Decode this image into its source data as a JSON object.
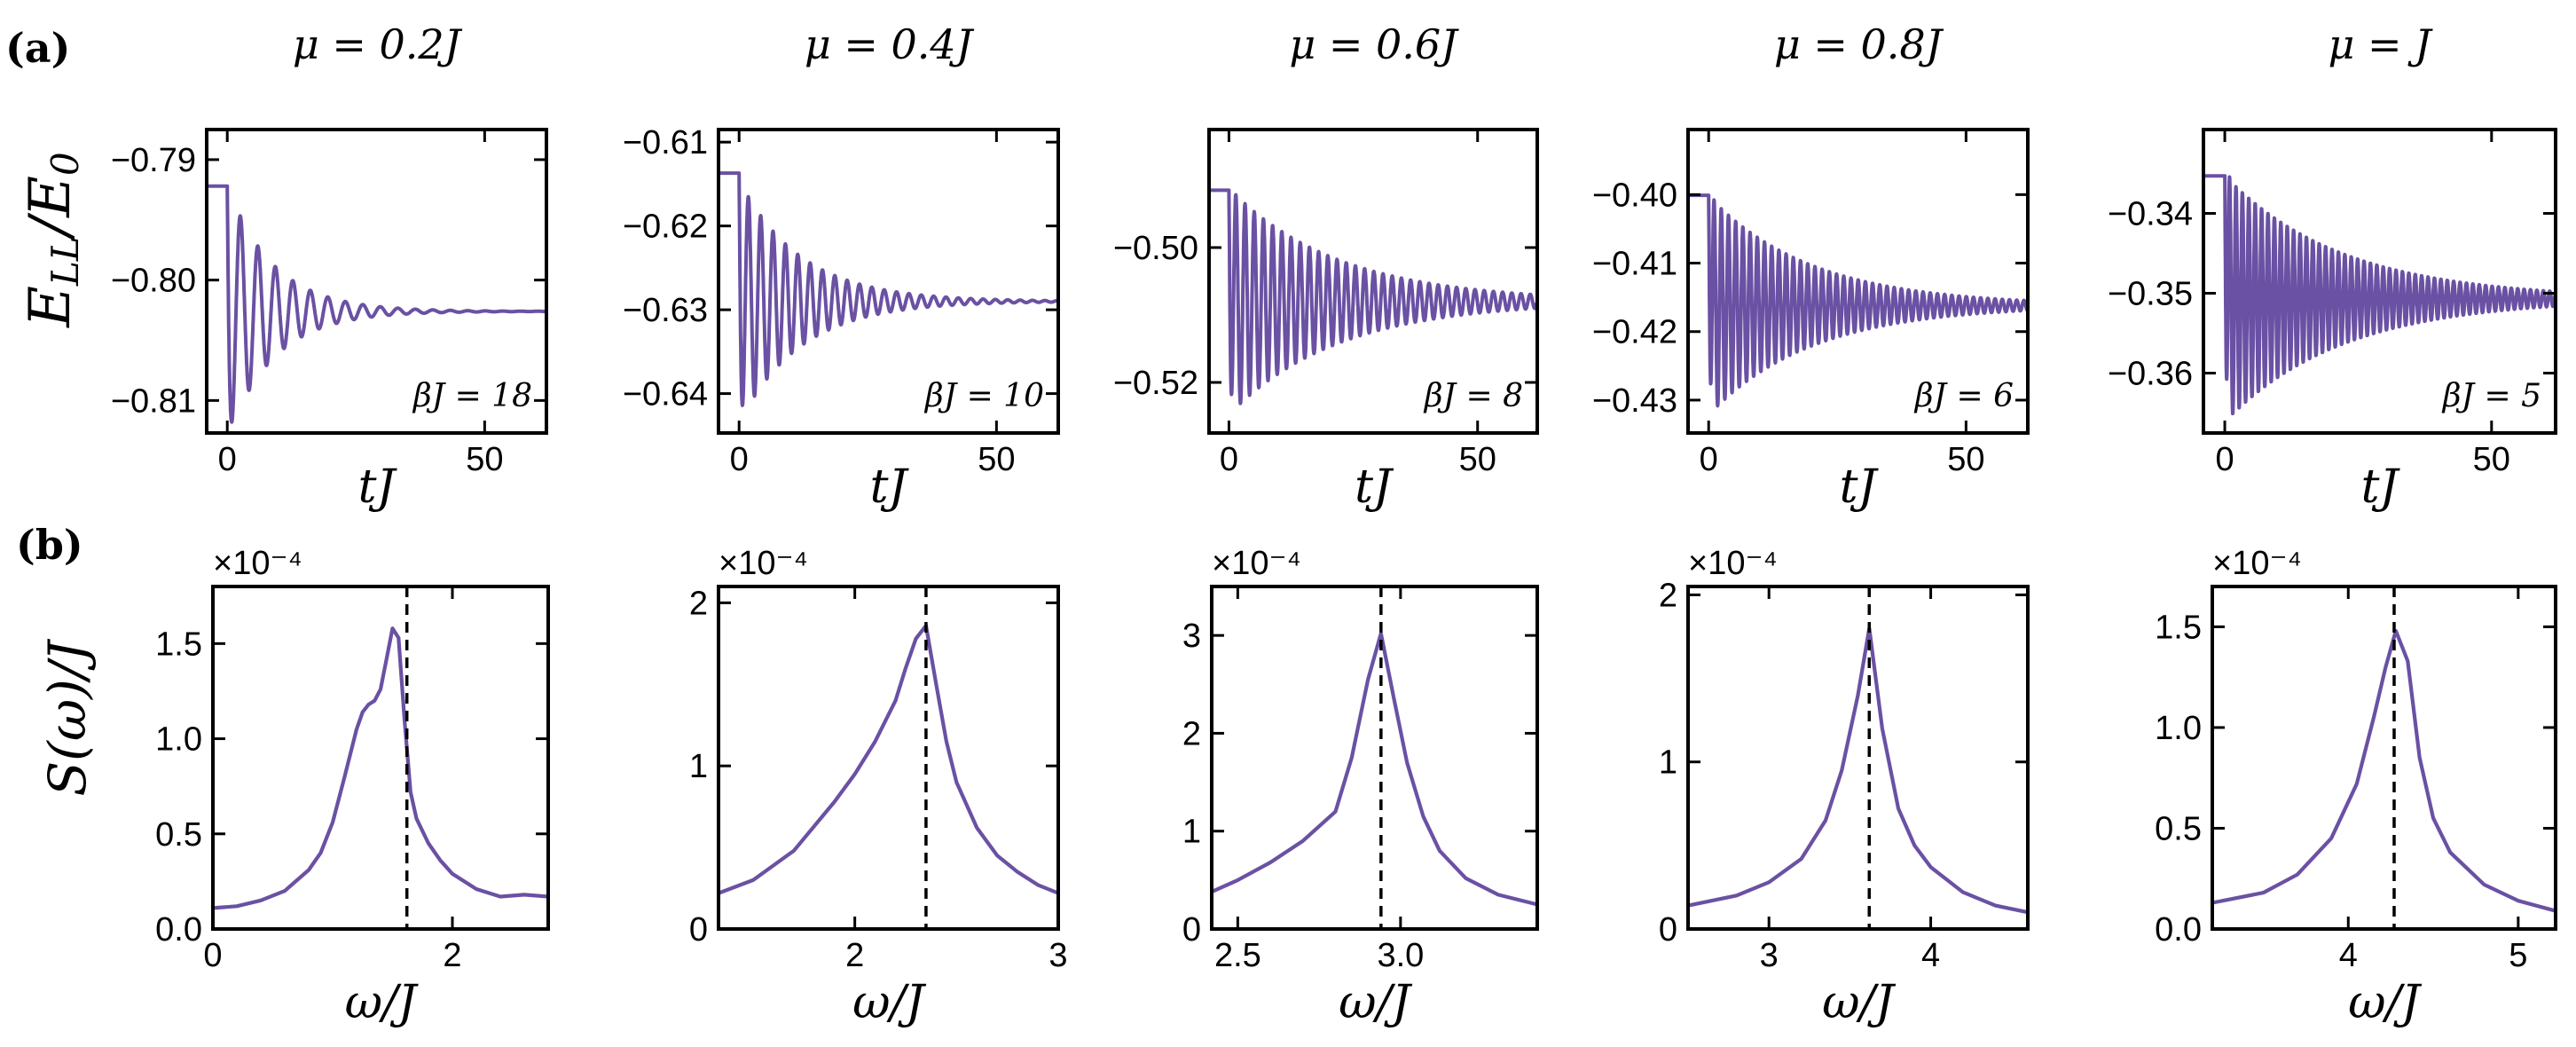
{
  "figure": {
    "row_labels": [
      "(a)",
      "(b)"
    ],
    "row_a_ylabel": "E_LL / E_0",
    "row_b_ylabel": "S(ω)/J",
    "row_a_xlabel": "tJ",
    "row_b_xlabel": "ω/J",
    "scale_note": "×10⁻⁴",
    "line_color": "#6a51a3"
  },
  "chart_data": [
    {
      "type": "line",
      "panel": "a1",
      "title": "μ = 0.2J",
      "annotation": "βJ = 18",
      "xlabel": "tJ",
      "ylabel": "E_LL/E_0",
      "xlim": [
        -4,
        62
      ],
      "ylim": [
        -0.8127,
        -0.7875
      ],
      "xticks": [
        0,
        50
      ],
      "xtick_labels": [
        "0",
        "50"
      ],
      "yticks": [
        -0.79,
        -0.8,
        -0.81
      ],
      "ytick_labels": [
        "−0.79",
        "−0.80",
        "−0.81"
      ],
      "signal": {
        "t0": 0,
        "initial": -0.7922,
        "final": -0.8026,
        "amplitude": 0.0105,
        "period": 3.4,
        "decay_time": 9
      }
    },
    {
      "type": "line",
      "panel": "a2",
      "title": "μ = 0.4J",
      "annotation": "βJ = 10",
      "xlabel": "tJ",
      "ylabel": "E_LL/E_0",
      "xlim": [
        -4,
        62
      ],
      "ylim": [
        -0.6447,
        -0.6085
      ],
      "xticks": [
        0,
        50
      ],
      "xtick_labels": [
        "0",
        "50"
      ],
      "yticks": [
        -0.61,
        -0.62,
        -0.63,
        -0.64
      ],
      "ytick_labels": [
        "−0.61",
        "−0.62",
        "−0.63",
        "−0.64"
      ],
      "signal": {
        "t0": 0,
        "initial": -0.6137,
        "final": -0.629,
        "amplitude": 0.0145,
        "period": 2.4,
        "decay_time": 12
      }
    },
    {
      "type": "line",
      "panel": "a3",
      "title": "μ = 0.6J",
      "annotation": "βJ = 8",
      "xlabel": "tJ",
      "ylabel": "E_LL/E_0",
      "xlim": [
        -4,
        62
      ],
      "ylim": [
        -0.5275,
        -0.4825
      ],
      "xticks": [
        0,
        50
      ],
      "xtick_labels": [
        "0",
        "50"
      ],
      "yticks": [
        -0.5,
        -0.52
      ],
      "ytick_labels": [
        "−0.50",
        "−0.52"
      ],
      "signal": {
        "t0": 0,
        "initial": -0.4915,
        "final": -0.508,
        "amplitude": 0.0168,
        "period": 1.85,
        "decay_time": 22
      }
    },
    {
      "type": "line",
      "panel": "a4",
      "title": "μ = 0.8J",
      "annotation": "βJ = 6",
      "xlabel": "tJ",
      "ylabel": "E_LL/E_0",
      "xlim": [
        -4,
        62
      ],
      "ylim": [
        -0.4348,
        -0.3905
      ],
      "xticks": [
        0,
        50
      ],
      "xtick_labels": [
        "0",
        "50"
      ],
      "yticks": [
        -0.4,
        -0.41,
        -0.42,
        -0.43
      ],
      "ytick_labels": [
        "−0.40",
        "−0.41",
        "−0.42",
        "−0.43"
      ],
      "signal": {
        "t0": 0,
        "initial": -0.4001,
        "final": -0.4162,
        "amplitude": 0.016,
        "period": 1.4,
        "decay_time": 20
      }
    },
    {
      "type": "line",
      "panel": "a5",
      "title": "μ = J",
      "annotation": "βJ = 5",
      "xlabel": "tJ",
      "ylabel": "E_LL/E_0",
      "xlim": [
        -4,
        62
      ],
      "ylim": [
        -0.3675,
        -0.3295
      ],
      "xticks": [
        0,
        50
      ],
      "xtick_labels": [
        "0",
        "50"
      ],
      "yticks": [
        -0.34,
        -0.35,
        -0.36
      ],
      "ytick_labels": [
        "−0.34",
        "−0.35",
        "−0.36"
      ],
      "signal": {
        "t0": 0,
        "initial": -0.3353,
        "final": -0.3507,
        "amplitude": 0.0155,
        "period": 1.2,
        "decay_time": 22
      }
    },
    {
      "type": "line",
      "panel": "b1",
      "title": "",
      "xlabel": "ω/J",
      "ylabel": "S(ω)/J",
      "scale": "×10⁻⁴",
      "xlim": [
        0,
        2.8
      ],
      "ylim": [
        0,
        1.8
      ],
      "xticks": [
        0,
        2
      ],
      "xtick_labels": [
        "0",
        "2"
      ],
      "yticks": [
        0,
        0.5,
        1.0,
        1.5
      ],
      "ytick_labels": [
        "0.0",
        "0.5",
        "1.0",
        "1.5"
      ],
      "dashed_x": 1.62,
      "x": [
        0,
        0.2,
        0.4,
        0.6,
        0.8,
        0.9,
        1.0,
        1.1,
        1.2,
        1.25,
        1.3,
        1.35,
        1.4,
        1.45,
        1.5,
        1.55,
        1.6,
        1.65,
        1.7,
        1.8,
        1.9,
        2.0,
        2.2,
        2.4,
        2.6,
        2.8
      ],
      "y": [
        0.11,
        0.12,
        0.15,
        0.2,
        0.31,
        0.4,
        0.56,
        0.8,
        1.05,
        1.14,
        1.18,
        1.2,
        1.26,
        1.42,
        1.58,
        1.53,
        1.1,
        0.72,
        0.58,
        0.45,
        0.36,
        0.29,
        0.21,
        0.17,
        0.18,
        0.17
      ]
    },
    {
      "type": "line",
      "panel": "b2",
      "title": "",
      "xlabel": "ω/J",
      "ylabel": "S(ω)/J",
      "scale": "×10⁻⁴",
      "xlim": [
        1.33,
        3.0
      ],
      "ylim": [
        0,
        2.1
      ],
      "xticks": [
        2,
        3
      ],
      "xtick_labels": [
        "2",
        "3"
      ],
      "yticks": [
        0,
        1,
        2
      ],
      "ytick_labels": [
        "0",
        "1",
        "2"
      ],
      "dashed_x": 2.35,
      "x": [
        1.33,
        1.5,
        1.7,
        1.9,
        2.0,
        2.1,
        2.2,
        2.25,
        2.3,
        2.35,
        2.4,
        2.45,
        2.5,
        2.6,
        2.7,
        2.8,
        2.9,
        3.0
      ],
      "y": [
        0.22,
        0.3,
        0.48,
        0.78,
        0.95,
        1.15,
        1.4,
        1.6,
        1.78,
        1.86,
        1.5,
        1.15,
        0.9,
        0.62,
        0.45,
        0.35,
        0.27,
        0.22
      ],
      "markers": true
    },
    {
      "type": "line",
      "panel": "b3",
      "title": "",
      "xlabel": "ω/J",
      "ylabel": "S(ω)/J",
      "scale": "×10⁻⁴",
      "xlim": [
        2.42,
        3.42
      ],
      "ylim": [
        0,
        3.5
      ],
      "xticks": [
        2.5,
        3.0
      ],
      "xtick_labels": [
        "2.5",
        "3.0"
      ],
      "yticks": [
        0,
        1,
        2,
        3
      ],
      "ytick_labels": [
        "0",
        "1",
        "2",
        "3"
      ],
      "dashed_x": 2.94,
      "x": [
        2.42,
        2.5,
        2.6,
        2.7,
        2.8,
        2.85,
        2.9,
        2.94,
        2.98,
        3.02,
        3.07,
        3.12,
        3.2,
        3.3,
        3.42
      ],
      "y": [
        0.38,
        0.5,
        0.68,
        0.9,
        1.2,
        1.75,
        2.55,
        3.02,
        2.35,
        1.7,
        1.15,
        0.8,
        0.52,
        0.35,
        0.25
      ],
      "markers": true
    },
    {
      "type": "line",
      "panel": "b4",
      "title": "",
      "xlabel": "ω/J",
      "ylabel": "S(ω)/J",
      "scale": "×10⁻⁴",
      "xlim": [
        2.5,
        4.6
      ],
      "ylim": [
        0,
        2.05
      ],
      "xticks": [
        3,
        4
      ],
      "xtick_labels": [
        "3",
        "4"
      ],
      "yticks": [
        0,
        1,
        2
      ],
      "ytick_labels": [
        "0",
        "1",
        "2"
      ],
      "dashed_x": 3.62,
      "x": [
        2.5,
        2.8,
        3.0,
        3.2,
        3.35,
        3.45,
        3.55,
        3.62,
        3.7,
        3.8,
        3.9,
        4.0,
        4.2,
        4.4,
        4.6
      ],
      "y": [
        0.14,
        0.2,
        0.28,
        0.42,
        0.65,
        0.95,
        1.4,
        1.8,
        1.2,
        0.72,
        0.5,
        0.37,
        0.22,
        0.14,
        0.1
      ]
    },
    {
      "type": "line",
      "panel": "b5",
      "title": "",
      "xlabel": "ω/J",
      "ylabel": "S(ω)/J",
      "scale": "×10⁻⁴",
      "xlim": [
        3.2,
        5.22
      ],
      "ylim": [
        0,
        1.7
      ],
      "xticks": [
        4,
        5
      ],
      "xtick_labels": [
        "4",
        "5"
      ],
      "yticks": [
        0,
        0.5,
        1.0,
        1.5
      ],
      "ytick_labels": [
        "0.0",
        "0.5",
        "1.0",
        "1.5"
      ],
      "dashed_x": 4.27,
      "x": [
        3.2,
        3.5,
        3.7,
        3.9,
        4.05,
        4.15,
        4.22,
        4.28,
        4.35,
        4.42,
        4.5,
        4.6,
        4.8,
        5.0,
        5.22
      ],
      "y": [
        0.13,
        0.18,
        0.27,
        0.45,
        0.72,
        1.05,
        1.3,
        1.48,
        1.33,
        0.85,
        0.55,
        0.38,
        0.22,
        0.14,
        0.09
      ]
    }
  ]
}
